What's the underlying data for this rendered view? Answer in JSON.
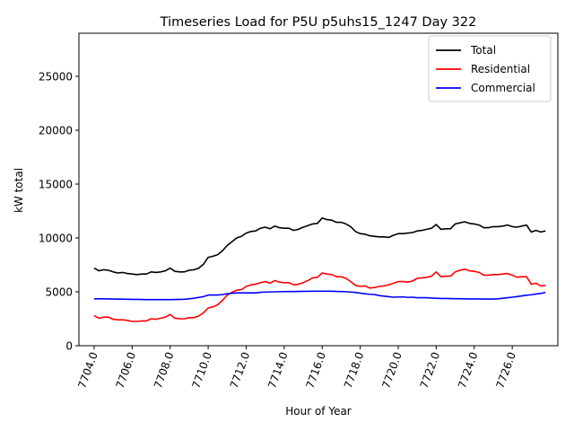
{
  "chart_data": {
    "type": "line",
    "title": "Timeseries Load for P5U p5uhs15_1247  Day 322",
    "xlabel": "Hour of Year",
    "ylabel": "kW total",
    "xlim": [
      7703.2,
      7728.4
    ],
    "ylim": [
      0,
      29000
    ],
    "xticks": [
      7704,
      7706,
      7708,
      7710,
      7712,
      7714,
      7716,
      7718,
      7720,
      7722,
      7724,
      7726
    ],
    "xtick_labels": [
      "7704.0",
      "7706.0",
      "7708.0",
      "7710.0",
      "7712.0",
      "7714.0",
      "7716.0",
      "7718.0",
      "7720.0",
      "7722.0",
      "7724.0",
      "7726.0"
    ],
    "yticks": [
      0,
      5000,
      10000,
      15000,
      20000,
      25000
    ],
    "ytick_labels": [
      "0",
      "5000",
      "10000",
      "15000",
      "20000",
      "25000"
    ],
    "legend_position": "top-right",
    "grid": false,
    "x_start": 7704,
    "x_step": 0.25,
    "series": [
      {
        "name": "Total",
        "color": "#000000",
        "values": [
          7200,
          6950,
          7050,
          7000,
          6850,
          6750,
          6800,
          6700,
          6650,
          6600,
          6650,
          6650,
          6850,
          6800,
          6850,
          6950,
          7200,
          6900,
          6850,
          6850,
          7000,
          7050,
          7200,
          7550,
          8200,
          8300,
          8450,
          8800,
          9300,
          9650,
          10000,
          10150,
          10450,
          10600,
          10650,
          10900,
          11000,
          10850,
          11100,
          10950,
          10900,
          10900,
          10700,
          10800,
          11000,
          11150,
          11300,
          11350,
          11850,
          11700,
          11650,
          11450,
          11450,
          11300,
          11050,
          10600,
          10400,
          10350,
          10200,
          10150,
          10100,
          10100,
          10050,
          10250,
          10400,
          10400,
          10450,
          10500,
          10650,
          10700,
          10800,
          10900,
          11250,
          10800,
          10850,
          10850,
          11300,
          11400,
          11500,
          11350,
          11300,
          11200,
          10950,
          10950,
          11050,
          11050,
          11100,
          11200,
          11050,
          11000,
          11100,
          11200,
          10550,
          10700,
          10550,
          10650
        ]
      },
      {
        "name": "Residential",
        "color": "#ff0000",
        "values": [
          2800,
          2550,
          2650,
          2650,
          2450,
          2400,
          2400,
          2350,
          2250,
          2250,
          2300,
          2300,
          2500,
          2450,
          2550,
          2650,
          2900,
          2550,
          2500,
          2500,
          2600,
          2600,
          2750,
          3050,
          3500,
          3600,
          3800,
          4200,
          4700,
          4950,
          5150,
          5200,
          5500,
          5650,
          5700,
          5850,
          5950,
          5800,
          6050,
          5900,
          5850,
          5850,
          5650,
          5700,
          5850,
          6050,
          6300,
          6350,
          6750,
          6650,
          6600,
          6400,
          6400,
          6250,
          5950,
          5600,
          5500,
          5550,
          5350,
          5400,
          5500,
          5550,
          5650,
          5800,
          5950,
          5950,
          5900,
          6000,
          6250,
          6300,
          6350,
          6450,
          6850,
          6400,
          6450,
          6450,
          6850,
          7000,
          7100,
          6950,
          6900,
          6800,
          6550,
          6550,
          6600,
          6600,
          6650,
          6700,
          6550,
          6350,
          6400,
          6400,
          5700,
          5800,
          5550,
          5600
        ]
      },
      {
        "name": "Commercial",
        "color": "#0000ff",
        "values": [
          4350,
          4350,
          4350,
          4340,
          4330,
          4320,
          4320,
          4310,
          4300,
          4300,
          4290,
          4280,
          4280,
          4280,
          4280,
          4280,
          4280,
          4290,
          4300,
          4310,
          4350,
          4400,
          4480,
          4550,
          4700,
          4700,
          4700,
          4750,
          4820,
          4870,
          4900,
          4900,
          4900,
          4900,
          4900,
          4950,
          4980,
          4990,
          5000,
          5010,
          5020,
          5030,
          5030,
          5040,
          5050,
          5050,
          5060,
          5060,
          5060,
          5060,
          5060,
          5040,
          5030,
          5010,
          4980,
          4940,
          4880,
          4820,
          4770,
          4750,
          4650,
          4600,
          4550,
          4500,
          4520,
          4530,
          4480,
          4500,
          4450,
          4450,
          4450,
          4420,
          4400,
          4380,
          4380,
          4370,
          4360,
          4360,
          4350,
          4340,
          4340,
          4340,
          4330,
          4330,
          4330,
          4350,
          4400,
          4450,
          4500,
          4560,
          4620,
          4680,
          4730,
          4800,
          4850,
          4950
        ]
      }
    ]
  }
}
